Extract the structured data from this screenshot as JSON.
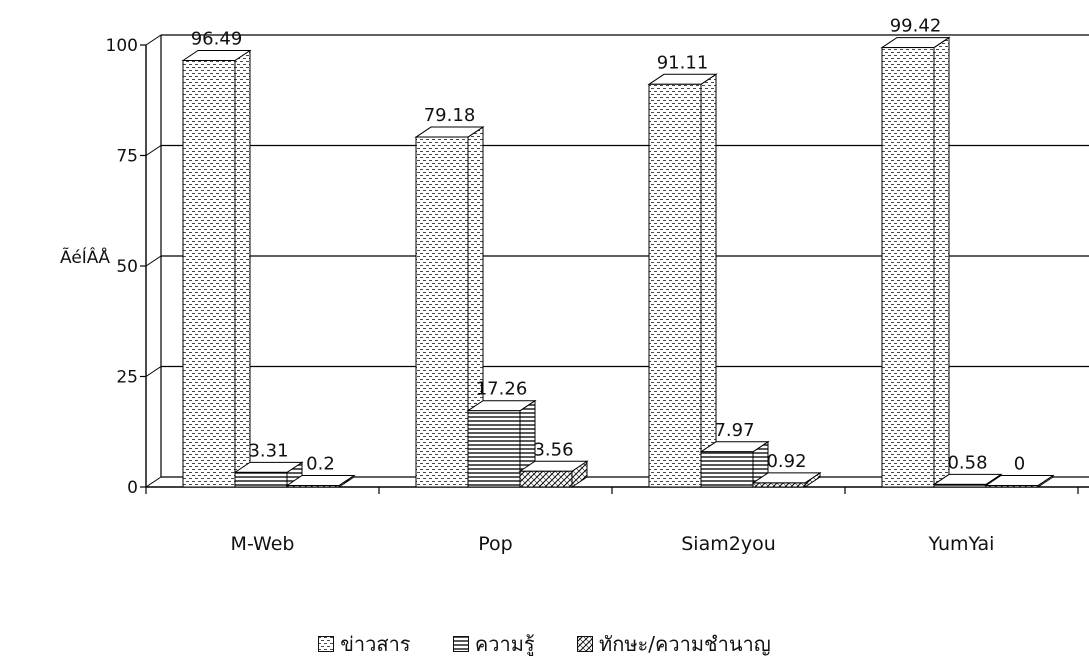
{
  "chart_data": {
    "type": "bar",
    "title": "",
    "xlabel": "",
    "ylabel": "ÃéÍÂÅ",
    "ylim": [
      0,
      100
    ],
    "yticks": [
      "0",
      "25",
      "50",
      "75",
      "100"
    ],
    "grid": true,
    "legend_position": "bottom",
    "categories": [
      "M-Web",
      "Pop",
      "Siam2you",
      "YumYai"
    ],
    "series": [
      {
        "name": "ข่าวสาร",
        "values": [
          96.49,
          79.18,
          91.11,
          99.42
        ],
        "labels": [
          "96.49",
          "79.18",
          "91.11",
          "99.42"
        ]
      },
      {
        "name": "ความรู้",
        "values": [
          3.31,
          17.26,
          7.97,
          0.58
        ],
        "labels": [
          "3.31",
          "17.26",
          "7.97",
          "0.58"
        ]
      },
      {
        "name": "ทักษะ/ความชำนาญ",
        "values": [
          0.2,
          3.56,
          0.92,
          0
        ],
        "labels": [
          "0.2",
          "3.56",
          "0.92",
          "0"
        ]
      }
    ]
  }
}
